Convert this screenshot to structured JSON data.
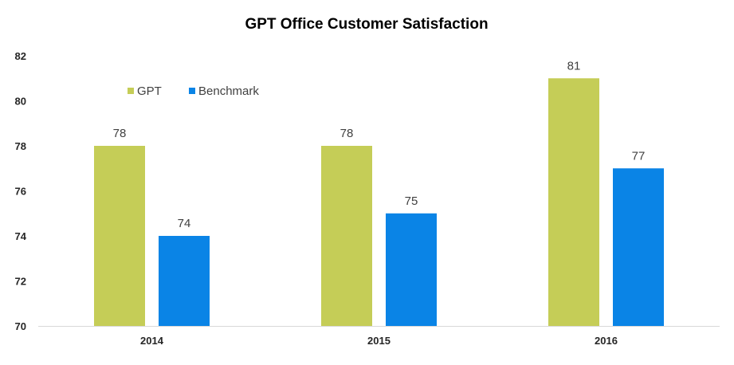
{
  "chart_data": {
    "type": "bar",
    "title": "GPT Office Customer Satisfaction",
    "xlabel": "",
    "ylabel": "",
    "categories": [
      "2014",
      "2015",
      "2016"
    ],
    "series": [
      {
        "name": "GPT",
        "values": [
          78,
          78,
          81
        ],
        "color": "#c5cd57"
      },
      {
        "name": "Benchmark",
        "values": [
          74,
          75,
          77
        ],
        "color": "#0a84e6"
      }
    ],
    "data_labels": [
      [
        "78",
        "78",
        "81"
      ],
      [
        "74",
        "75",
        "77"
      ]
    ],
    "ylim": [
      70,
      82
    ],
    "yticks": [
      "70",
      "72",
      "74",
      "76",
      "78",
      "80",
      "82"
    ],
    "grid": false,
    "legend": "top-left",
    "colors": {
      "axis": "#d9d9d9",
      "text": "#262626",
      "label": "#404040"
    }
  }
}
